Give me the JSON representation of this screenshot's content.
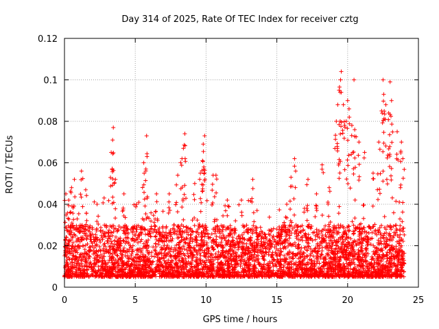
{
  "chart_data": {
    "type": "scatter",
    "title": "Day 314 of 2025, Rate Of TEC Index for receiver cztg",
    "xlabel": "GPS time / hours",
    "ylabel": "ROTI / TECUs",
    "xlim": [
      0,
      25
    ],
    "ylim": [
      0,
      0.12
    ],
    "xticks": [
      0,
      5,
      10,
      15,
      20,
      25
    ],
    "xtick_labels": [
      "0",
      "5",
      "10",
      "15",
      "20",
      "25"
    ],
    "yticks": [
      0,
      0.02,
      0.04,
      0.06,
      0.08,
      0.1,
      0.12
    ],
    "ytick_labels": [
      "0",
      "0.02",
      "0.04",
      "0.06",
      "0.08",
      "0.1",
      "0.12"
    ],
    "grid": true,
    "marker": "+",
    "color": "#ff0000",
    "series": [
      {
        "name": "ROTI",
        "x_range": [
          0,
          24
        ],
        "typical_band": [
          0.005,
          0.03
        ],
        "points": [
          [
            0.1,
            0.045
          ],
          [
            0.3,
            0.042
          ],
          [
            0.5,
            0.048
          ],
          [
            0.7,
            0.052
          ],
          [
            1.2,
            0.056
          ],
          [
            1.5,
            0.047
          ],
          [
            2.3,
            0.04
          ],
          [
            2.8,
            0.043
          ],
          [
            3.3,
            0.065
          ],
          [
            3.4,
            0.071
          ],
          [
            3.45,
            0.077
          ],
          [
            3.6,
            0.052
          ],
          [
            4.2,
            0.045
          ],
          [
            5.1,
            0.04
          ],
          [
            5.6,
            0.06
          ],
          [
            5.75,
            0.057
          ],
          [
            5.8,
            0.073
          ],
          [
            6.5,
            0.045
          ],
          [
            7.4,
            0.045
          ],
          [
            8.0,
            0.054
          ],
          [
            8.3,
            0.062
          ],
          [
            8.4,
            0.067
          ],
          [
            8.5,
            0.074
          ],
          [
            9.2,
            0.05
          ],
          [
            9.6,
            0.055
          ],
          [
            9.75,
            0.061
          ],
          [
            9.8,
            0.069
          ],
          [
            9.9,
            0.073
          ],
          [
            10.5,
            0.054
          ],
          [
            10.7,
            0.054
          ],
          [
            11.5,
            0.042
          ],
          [
            12.5,
            0.042
          ],
          [
            13.3,
            0.052
          ],
          [
            13.6,
            0.037
          ],
          [
            15.0,
            0.028
          ],
          [
            15.7,
            0.04
          ],
          [
            16.0,
            0.053
          ],
          [
            16.25,
            0.062
          ],
          [
            17.2,
            0.052
          ],
          [
            17.8,
            0.045
          ],
          [
            18.2,
            0.059
          ],
          [
            18.7,
            0.048
          ],
          [
            19.2,
            0.08
          ],
          [
            19.3,
            0.088
          ],
          [
            19.4,
            0.095
          ],
          [
            19.5,
            0.1
          ],
          [
            19.55,
            0.104
          ],
          [
            19.7,
            0.088
          ],
          [
            19.9,
            0.08
          ],
          [
            20.0,
            0.09
          ],
          [
            20.1,
            0.086
          ],
          [
            20.3,
            0.078
          ],
          [
            20.45,
            0.1
          ],
          [
            20.5,
            0.076
          ],
          [
            20.8,
            0.07
          ],
          [
            21.2,
            0.065
          ],
          [
            21.8,
            0.055
          ],
          [
            22.2,
            0.07
          ],
          [
            22.4,
            0.085
          ],
          [
            22.5,
            0.1
          ],
          [
            22.55,
            0.093
          ],
          [
            22.7,
            0.088
          ],
          [
            22.9,
            0.084
          ],
          [
            23.0,
            0.099
          ],
          [
            23.1,
            0.09
          ],
          [
            23.5,
            0.075
          ],
          [
            23.8,
            0.07
          ],
          [
            23.9,
            0.062
          ]
        ]
      }
    ]
  }
}
